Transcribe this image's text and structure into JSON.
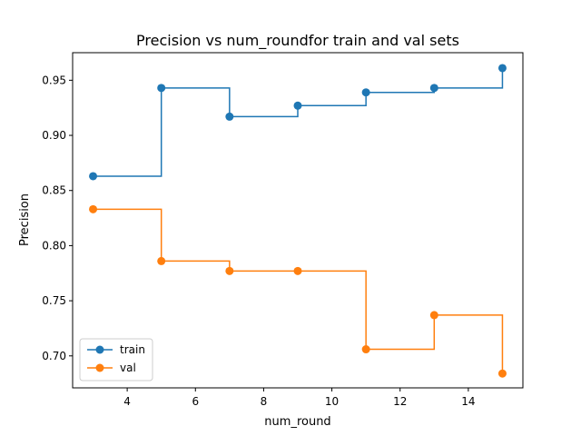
{
  "chart_data": {
    "type": "line",
    "title": "Precision vs num_roundfor train and val sets",
    "xlabel": "num_round",
    "ylabel": "Precision",
    "xlim": [
      2.4,
      15.6
    ],
    "ylim": [
      0.671,
      0.975
    ],
    "xticks": [
      4,
      6,
      8,
      10,
      12,
      14
    ],
    "yticks": [
      0.7,
      0.75,
      0.8,
      0.85,
      0.9,
      0.95
    ],
    "x": [
      3,
      5,
      7,
      9,
      11,
      13,
      15
    ],
    "step": "post",
    "grid": false,
    "legend_position": "lower-left",
    "series": [
      {
        "name": "train",
        "color": "#1f77b4",
        "values": [
          0.863,
          0.943,
          0.917,
          0.927,
          0.939,
          0.943,
          0.961
        ]
      },
      {
        "name": "val",
        "color": "#ff7f0e",
        "values": [
          0.833,
          0.786,
          0.777,
          0.777,
          0.706,
          0.737,
          0.684
        ]
      }
    ]
  }
}
